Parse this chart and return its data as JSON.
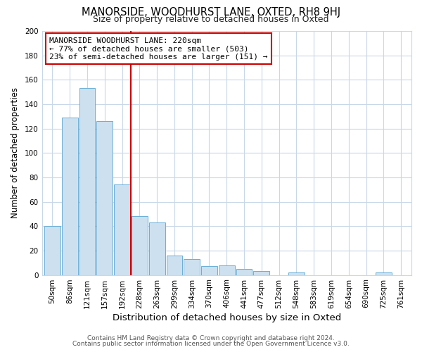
{
  "title": "MANORSIDE, WOODHURST LANE, OXTED, RH8 9HJ",
  "subtitle": "Size of property relative to detached houses in Oxted",
  "xlabel": "Distribution of detached houses by size in Oxted",
  "ylabel": "Number of detached properties",
  "bar_labels": [
    "50sqm",
    "86sqm",
    "121sqm",
    "157sqm",
    "192sqm",
    "228sqm",
    "263sqm",
    "299sqm",
    "334sqm",
    "370sqm",
    "406sqm",
    "441sqm",
    "477sqm",
    "512sqm",
    "548sqm",
    "583sqm",
    "619sqm",
    "654sqm",
    "690sqm",
    "725sqm",
    "761sqm"
  ],
  "bar_values": [
    40,
    129,
    153,
    126,
    74,
    48,
    43,
    16,
    13,
    7,
    8,
    5,
    3,
    0,
    2,
    0,
    0,
    0,
    0,
    2,
    0
  ],
  "bar_color": "#cce0f0",
  "bar_edgecolor": "#6aaed6",
  "vline_x_index": 5,
  "vline_color": "#cc0000",
  "ylim": [
    0,
    200
  ],
  "yticks": [
    0,
    20,
    40,
    60,
    80,
    100,
    120,
    140,
    160,
    180,
    200
  ],
  "annotation_title": "MANORSIDE WOODHURST LANE: 220sqm",
  "annotation_line1": "← 77% of detached houses are smaller (503)",
  "annotation_line2": "23% of semi-detached houses are larger (151) →",
  "footer1": "Contains HM Land Registry data © Crown copyright and database right 2024.",
  "footer2": "Contains public sector information licensed under the Open Government Licence v3.0.",
  "background_color": "#ffffff",
  "grid_color": "#c8d8e8",
  "title_fontsize": 10.5,
  "subtitle_fontsize": 9,
  "xlabel_fontsize": 9.5,
  "ylabel_fontsize": 8.5,
  "tick_fontsize": 7.5,
  "footer_fontsize": 6.5,
  "ann_fontsize": 8.0
}
